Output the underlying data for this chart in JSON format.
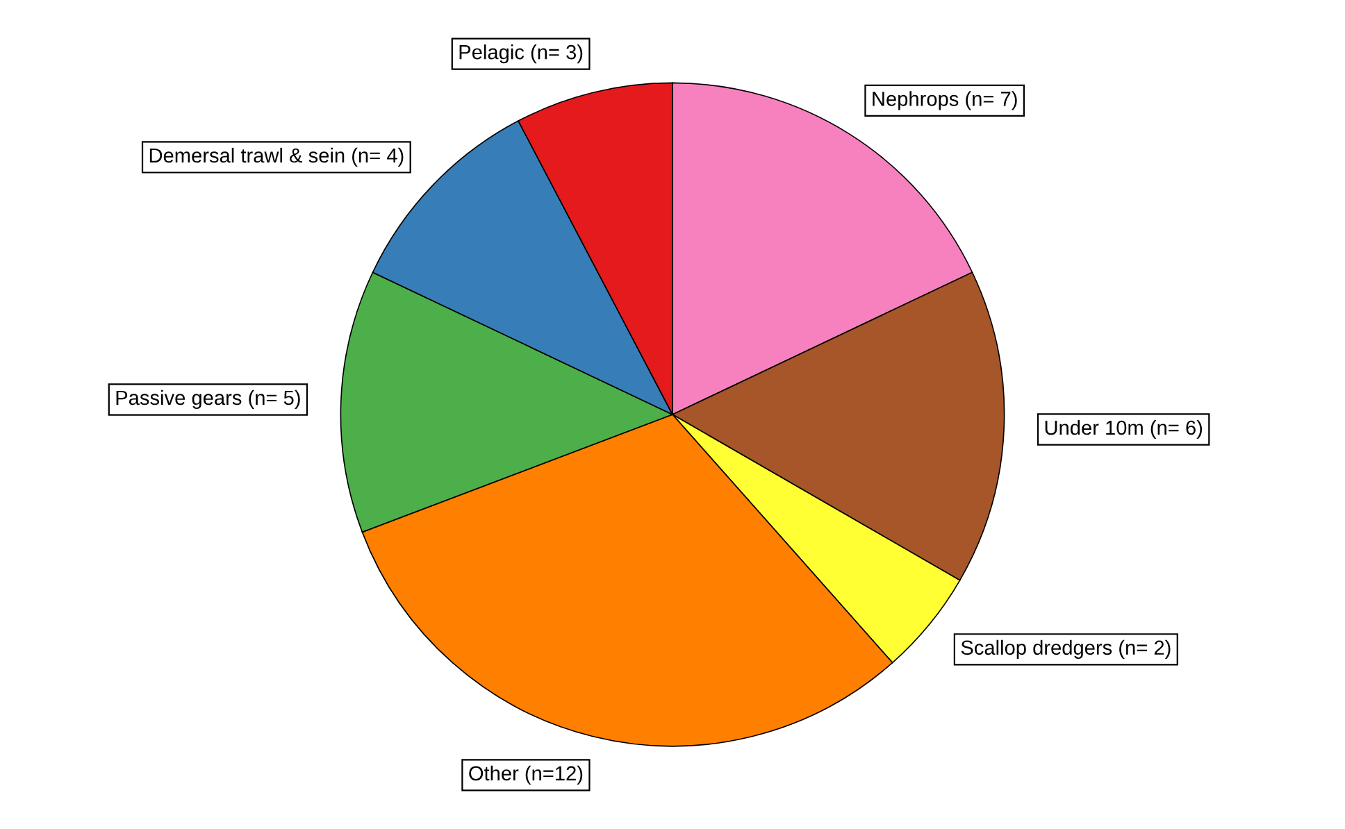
{
  "chart_data": {
    "type": "pie",
    "categories": [
      "Nephrops (n= 7)",
      "Under 10m (n= 6)",
      "Scallop dredgers (n= 2)",
      "Other (n=12)",
      "Passive gears (n= 5)",
      "Demersal trawl & sein (n= 4)",
      "Pelagic (n= 3)"
    ],
    "values": [
      7,
      6,
      2,
      12,
      5,
      4,
      3
    ],
    "colors": [
      "#f781bf",
      "#a65628",
      "#ffff33",
      "#ff7f00",
      "#4daf4a",
      "#377eb8",
      "#e41a1c"
    ],
    "legend": false
  }
}
